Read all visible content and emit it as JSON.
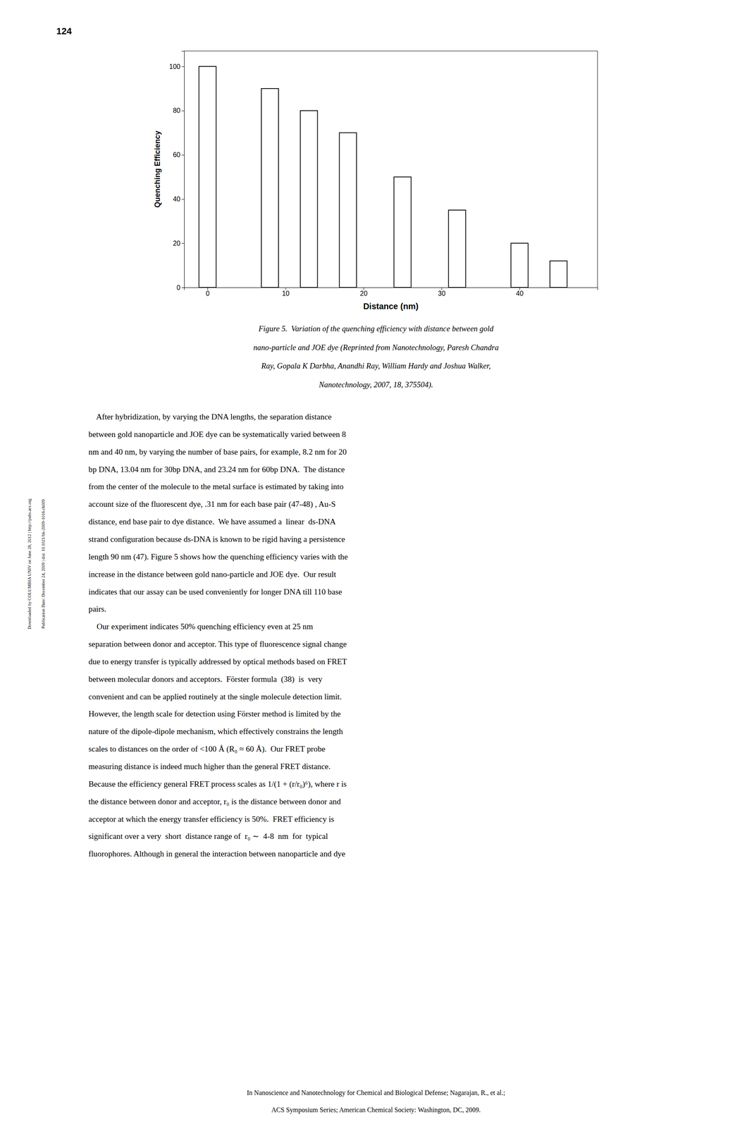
{
  "chart_data": {
    "type": "bar",
    "x": [
      0,
      8,
      13,
      18,
      25,
      32,
      40,
      45
    ],
    "values": [
      100,
      90,
      80,
      70,
      50,
      35,
      20,
      12
    ],
    "color": "#000000",
    "xlabel": "Distance (nm)",
    "ylabel": "Quenching Efficiency",
    "xlim": [
      -3,
      50
    ],
    "ylim": [
      0,
      107
    ],
    "xticks": [
      0,
      10,
      20,
      30,
      40
    ],
    "yticks": [
      0,
      20,
      40,
      60,
      80,
      100
    ],
    "grid": false
  },
  "page_number": "124",
  "caption_lines": [
    "Figure 5.  Variation of the quenching efficiency with distance between gold",
    "nano-particle and JOE dye (Reprinted from Nanotechnology, Paresh Chandra",
    "Ray, Gopala K Darbha, Anandhi Ray, William Hardy and Joshua Walker,",
    "Nanotechnology, 2007, 18, 375504)."
  ],
  "p1_lines": [
    "    After hybridization, by varying the DNA lengths, the separation distance",
    "between gold nanoparticle and JOE dye can be systematically varied between 8",
    "nm and 40 nm, by varying the number of base pairs, for example, 8.2 nm for 20",
    "bp DNA, 13.04 nm for 30bp DNA, and 23.24 nm for 60bp DNA.  The distance",
    "from the center of the molecule to the metal surface is estimated by taking into",
    "account size of the fluorescent dye, .31 nm for each base pair (47-48) , Au-S",
    "distance, end base pair to dye distance.  We have assumed a  linear  ds-DNA",
    "strand configuration because ds-DNA is known to be rigid having a persistence",
    "length 90 nm (47). Figure 5 shows how the quenching efficiency varies with the",
    "increase in the distance between gold nano-particle and JOE dye.  Our result",
    "indicates that our assay can be used conveniently for longer DNA till 110 base",
    "pairs."
  ],
  "p2_lines": [
    "    Our experiment indicates 50% quenching efficiency even at 25 nm",
    "separation between donor and acceptor. This type of fluorescence signal change",
    "due to energy transfer is typically addressed by optical methods based on FRET",
    "between molecular donors and acceptors.  Förster formula  (38)  is  very",
    "convenient and can be applied routinely at the single molecule detection limit.",
    "However, the length scale for detection using Förster method is limited by the",
    "nature of the dipole-dipole mechanism, which effectively constrains the length",
    "scales to distances on the order of <100 Å (R₀ ≈ 60 Å).  Our FRET probe",
    "measuring distance is indeed much higher than the general FRET distance.",
    "Because the efficiency general FRET process scales as 1/(1 + (r/r₀)⁶), where r is",
    "the distance between donor and acceptor, r₀ is the distance between donor and",
    "acceptor at which the energy transfer efficiency is 50%.  FRET efficiency is",
    "significant over a very  short  distance range of  r₀ ∼  4-8  nm  for  typical",
    "fluorophores. Although in general the interaction between nanoparticle and dye"
  ],
  "footer_lines": [
    "In Nanoscience and Nanotechnology for Chemical and Biological Defense; Nagarajan, R., et al.;",
    "ACS Symposium Series; American Chemical Society: Washington, DC, 2009."
  ],
  "side_texts": [
    "Downloaded by COLUMBIA UNIV on June 28, 2012 | http://pubs.acs.org",
    "Publication Date: December 24, 2009 | doi: 10.1021/bk-2009-1016.ch009"
  ]
}
